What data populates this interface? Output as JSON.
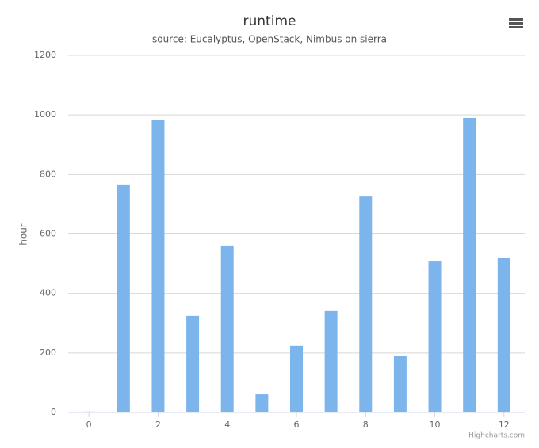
{
  "chart_data": {
    "type": "bar",
    "title": "runtime",
    "subtitle": "source: Eucalyptus, OpenStack, Nimbus on sierra",
    "y_label": "hour",
    "credits": "Highcharts.com",
    "x": [
      0,
      1,
      2,
      3,
      4,
      5,
      6,
      7,
      8,
      9,
      10,
      11,
      12
    ],
    "values": [
      3,
      764,
      982,
      325,
      559,
      61,
      224,
      341,
      726,
      189,
      508,
      990,
      519
    ],
    "color": "#7cb5ec",
    "xlim": [
      -0.6,
      12.6
    ],
    "xticks": [
      0,
      2,
      4,
      6,
      8,
      10,
      12
    ],
    "ylim": [
      0,
      1200
    ],
    "yticks": [
      0,
      200,
      400,
      600,
      800,
      1000,
      1200
    ],
    "grid": true
  }
}
